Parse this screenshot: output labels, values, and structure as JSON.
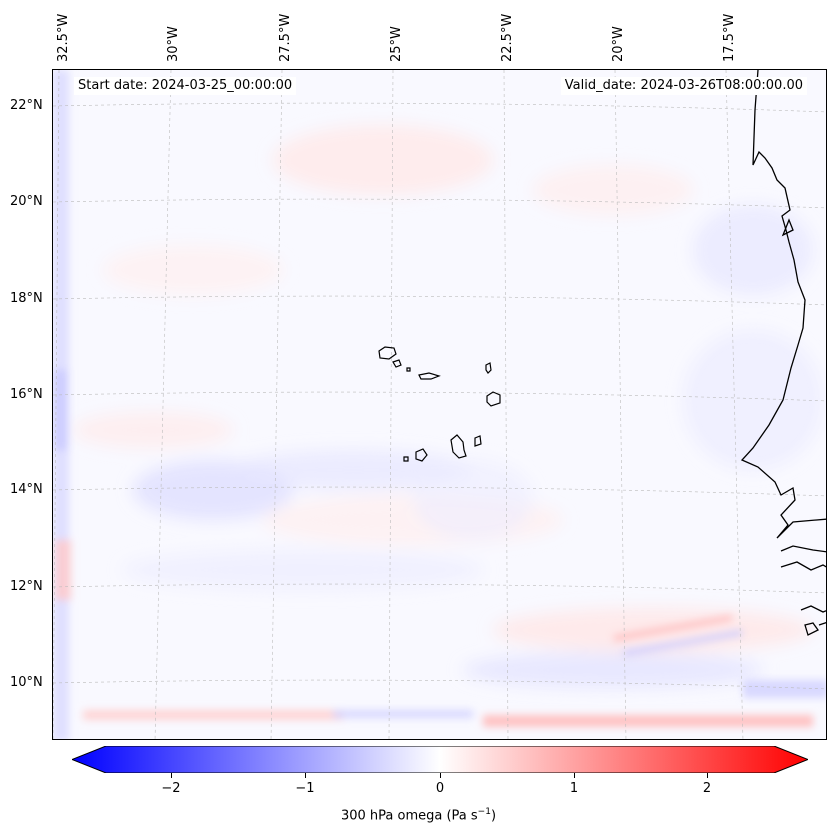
{
  "map": {
    "start_date": "Start date: 2024-03-25_00:00:00",
    "valid_date": "Valid_date: 2024-03-26T08:00:00.00",
    "longitude_labels": [
      "32.5°W",
      "30°W",
      "27.5°W",
      "25°W",
      "22.5°W",
      "20°W",
      "17.5°W"
    ],
    "latitude_labels": [
      "22°N",
      "20°N",
      "18°N",
      "16°N",
      "14°N",
      "12°N",
      "10°N"
    ]
  },
  "colorbar": {
    "label": "300 hPa omega (Pa s",
    "label_superscript": "−1",
    "label_suffix": ")",
    "range": [
      -2.6,
      2.6
    ],
    "ticks": [
      "−2",
      "−1",
      "0",
      "1",
      "2"
    ],
    "tick_values": [
      -2,
      -1,
      0,
      1,
      2
    ],
    "colormap": "bwr",
    "color_min": "#0000ff",
    "color_mid": "#ffffff",
    "color_max": "#ff0000"
  }
}
